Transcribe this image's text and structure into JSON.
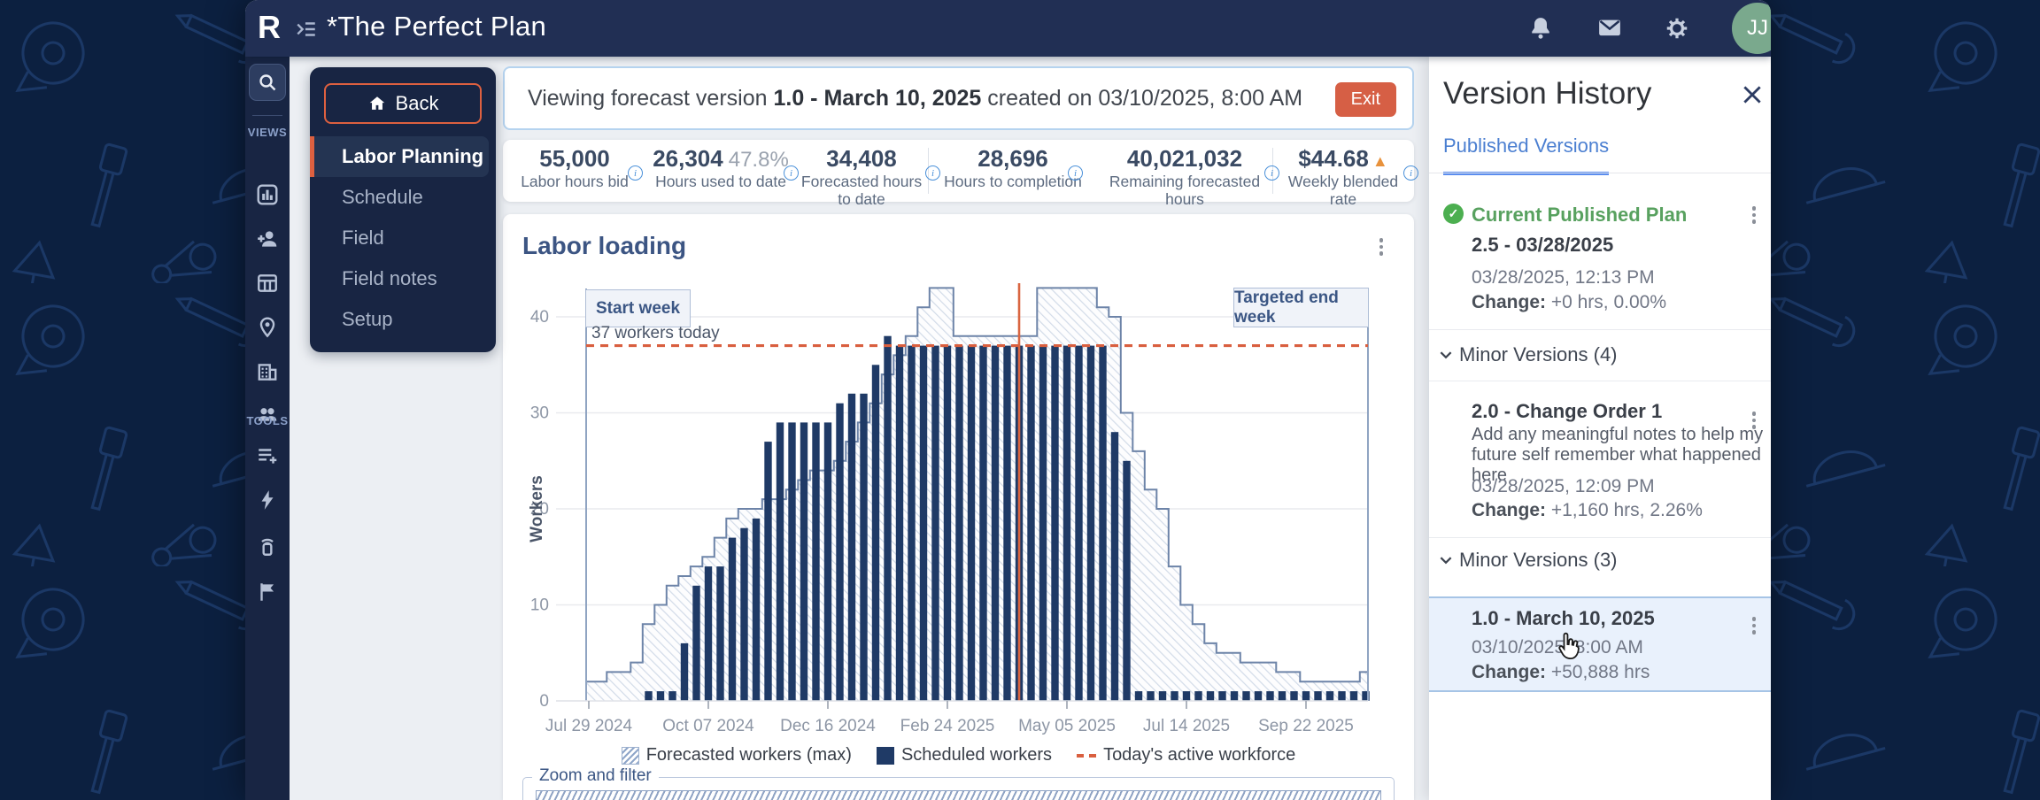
{
  "header": {
    "logo": "R",
    "title": "*The Perfect Plan",
    "avatar_initials": "JJ"
  },
  "rail": {
    "views_label": "VIEWS",
    "tools_label": "TOOLS"
  },
  "nav": {
    "back_label": "Back",
    "items": [
      {
        "label": "Labor Planning",
        "active": true
      },
      {
        "label": "Schedule",
        "active": false
      },
      {
        "label": "Field",
        "active": false
      },
      {
        "label": "Field notes",
        "active": false
      },
      {
        "label": "Setup",
        "active": false
      }
    ]
  },
  "banner": {
    "prefix": "Viewing forecast version ",
    "version": "1.0 - March 10, 2025",
    "suffix": " created on 03/10/2025, 8:00 AM",
    "exit_label": "Exit"
  },
  "stats": [
    {
      "value": "55,000",
      "label": "Labor hours bid"
    },
    {
      "value": "26,304",
      "pct": "47.8%",
      "label": "Hours used to date"
    },
    {
      "value": "34,408",
      "label": "Forecasted hours to date"
    },
    {
      "value": "28,696",
      "label": "Hours to completion"
    },
    {
      "value": "40,021,032",
      "label": "Remaining forecasted hours"
    },
    {
      "value": "$44.68",
      "trend": "▲",
      "label": "Weekly blended rate"
    }
  ],
  "chart": {
    "title": "Labor loading",
    "start_week_label": "Start week",
    "end_week_label": "Targeted end week",
    "today_line_label": "37 workers today",
    "zoom_filter_label": "Zoom and filter",
    "legend": [
      "Forecasted workers (max)",
      "Scheduled workers",
      "Today's active workforce"
    ]
  },
  "chart_data": {
    "type": "composite-area-bar",
    "title": "Labor loading",
    "ylabel": "Workers",
    "ylim": [
      0,
      45
    ],
    "yticks": [
      0,
      10,
      20,
      30,
      40
    ],
    "x_unit": "week",
    "x_tick_labels": [
      "Jul 29 2024",
      "Oct 07 2024",
      "Dec 16 2024",
      "Feb 24 2025",
      "May 05 2025",
      "Jul 14 2025",
      "Sep 22 2025"
    ],
    "x_tick_week_indices": [
      0,
      10,
      20,
      30,
      40,
      50,
      60
    ],
    "week_count": 66,
    "series": [
      {
        "name": "Forecasted workers (max)",
        "style": "area-hatched",
        "values": [
          2,
          2,
          3,
          3,
          4,
          8,
          10,
          12,
          13,
          14,
          15,
          17,
          19,
          20,
          20,
          21,
          21,
          22,
          23,
          24,
          24,
          25,
          27,
          29,
          31,
          34,
          36,
          38,
          41,
          43,
          43,
          38,
          38,
          38,
          38,
          38,
          38,
          38,
          43,
          43,
          43,
          43,
          43,
          41,
          40,
          30,
          26,
          22,
          20,
          14,
          10,
          8,
          6,
          5,
          5,
          4,
          4,
          4,
          3,
          3,
          2,
          2,
          2,
          2,
          2,
          3
        ]
      },
      {
        "name": "Scheduled workers",
        "style": "bar",
        "values": [
          0,
          0,
          0,
          0,
          0,
          1,
          1,
          1,
          6,
          12,
          14,
          14,
          17,
          18,
          19,
          27,
          29,
          29,
          29,
          29,
          29,
          31,
          32,
          32,
          35,
          38,
          37,
          37,
          37,
          37,
          37,
          37,
          37,
          37,
          37,
          37,
          37,
          37,
          37,
          37,
          37,
          37,
          37,
          37,
          28,
          25,
          1,
          1,
          1,
          1,
          1,
          1,
          1,
          1,
          1,
          1,
          1,
          1,
          1,
          1,
          1,
          1,
          1,
          1,
          1,
          1
        ]
      }
    ],
    "today_line": {
      "name": "Today's active workforce",
      "value": 37,
      "week_index": 36
    },
    "annotations": [
      {
        "text": "Start week",
        "week_index": 0
      },
      {
        "text": "Targeted end week",
        "week_index": 60
      }
    ],
    "colors": {
      "bar": "#1f3a66",
      "area_outline": "#6d84a8",
      "area_hatch": "#d2dbe8",
      "today_dashed": "#d95f3f",
      "today_vertical": "#d96540"
    }
  },
  "version_panel": {
    "title": "Version History",
    "tab": "Published Versions",
    "current": {
      "badge": "Current Published Plan",
      "title": "2.5 - 03/28/2025",
      "timestamp": "03/28/2025, 12:13 PM",
      "change_label": "Change:",
      "change": "+0 hrs, 0.00%"
    },
    "minor_group_1": "Minor Versions (4)",
    "v2": {
      "title": "2.0 - Change Order 1",
      "note_line1": "Add any meaningful notes to help my",
      "note_line2": "future self remember what happened here",
      "timestamp": "03/28/2025, 12:09 PM",
      "change_label": "Change:",
      "change": "+1,160 hrs, 2.26%"
    },
    "minor_group_2": "Minor Versions (3)",
    "v1": {
      "title": "1.0 - March 10, 2025",
      "timestamp": "03/10/2025, 8:00 AM",
      "change_label": "Change:",
      "change": "+50,888 hrs"
    }
  },
  "colors": {
    "accent_orange": "#d95f40",
    "navy": "#1f3a66",
    "green": "#4caf50",
    "tab_blue": "#4b7fd1",
    "header_navy": "#212f54"
  }
}
